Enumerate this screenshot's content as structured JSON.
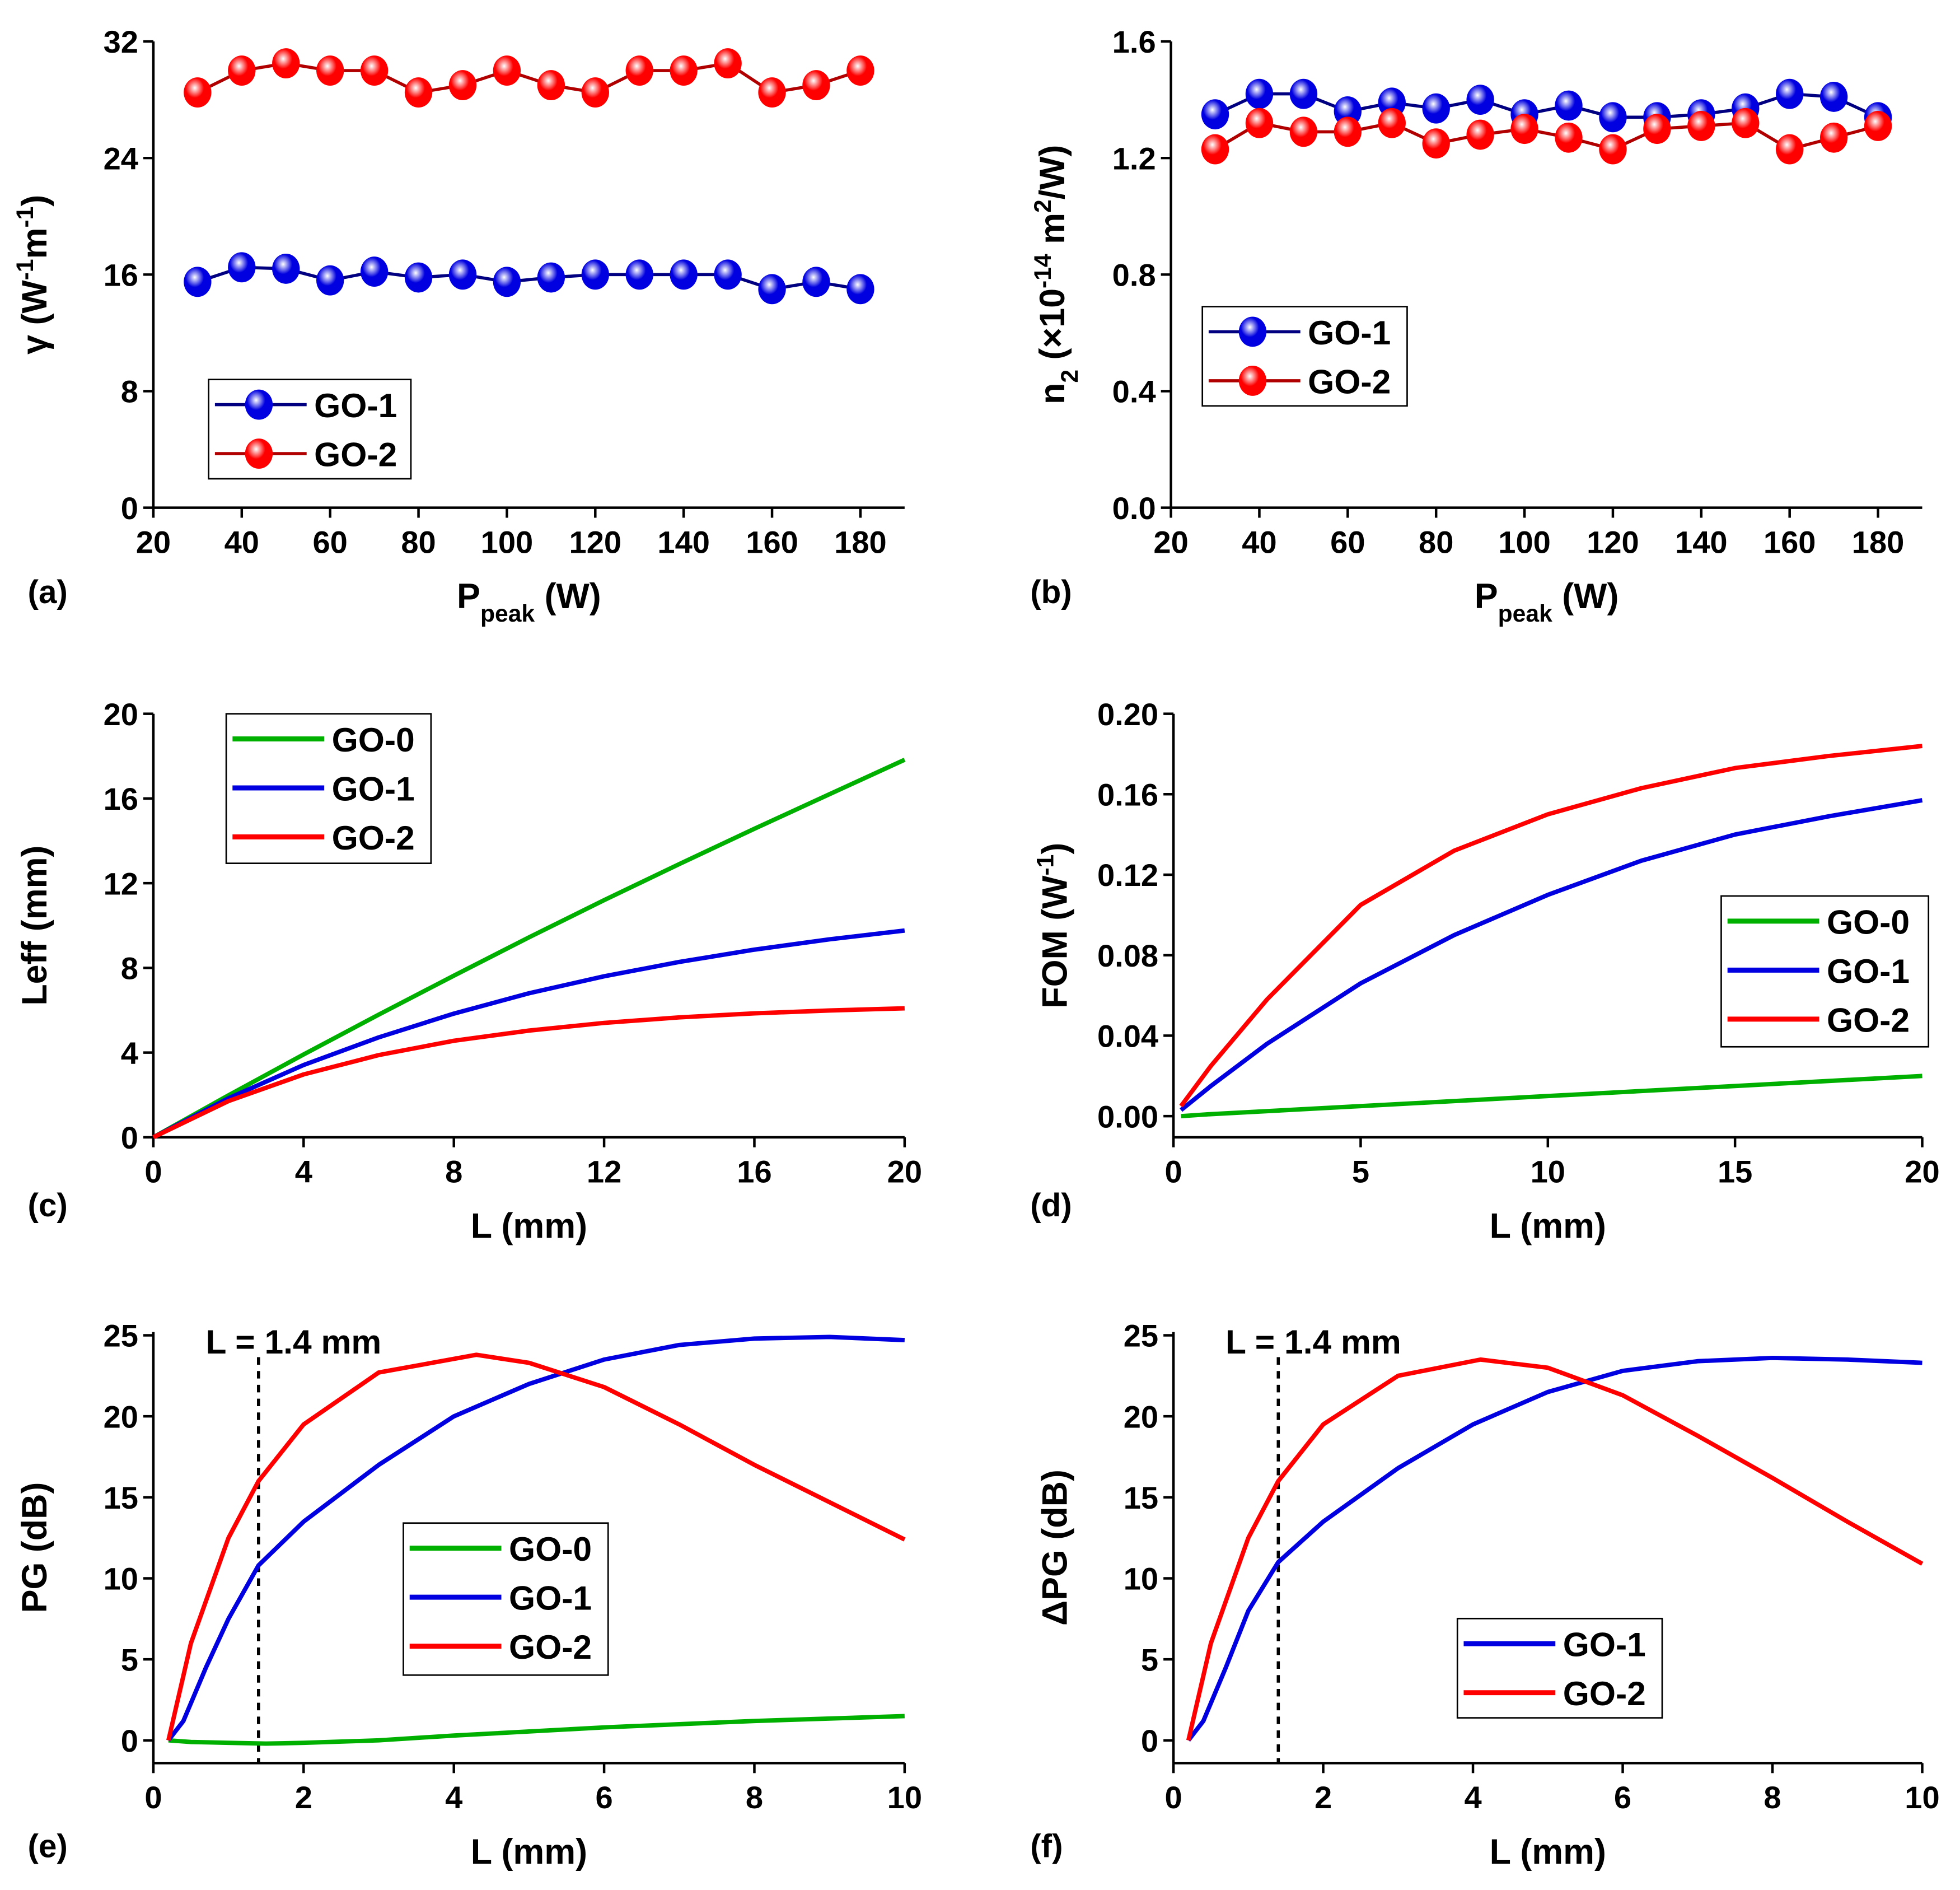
{
  "colors": {
    "GO-0": "#00b000",
    "GO-1": "#0000e0",
    "GO-2": "#ff0000"
  },
  "chart_data": [
    {
      "id": "a",
      "panel_label": "(a)",
      "type": "line",
      "markers": "sphere",
      "xlabel": [
        {
          "t": "P"
        },
        {
          "t": "peak",
          "sub": true
        },
        {
          "t": " (W)"
        }
      ],
      "ylabel": [
        {
          "t": "γ (W"
        },
        {
          "t": "-1",
          "sup": true
        },
        {
          "t": "m"
        },
        {
          "t": "-1",
          "sup": true
        },
        {
          "t": ")"
        }
      ],
      "xlim": [
        20,
        190
      ],
      "ylim": [
        0,
        32
      ],
      "xticks": [
        "20",
        "40",
        "60",
        "80",
        "100",
        "120",
        "140",
        "160",
        "180"
      ],
      "yticks": [
        "0",
        "8",
        "16",
        "24",
        "32"
      ],
      "legend_position": "lower-left",
      "x": [
        30,
        40,
        50,
        60,
        70,
        80,
        90,
        100,
        110,
        120,
        130,
        140,
        150,
        160,
        170,
        180
      ],
      "series": [
        {
          "name": "GO-1",
          "values": [
            15.5,
            16.5,
            16.4,
            15.6,
            16.2,
            15.8,
            16.0,
            15.5,
            15.8,
            16.0,
            16.0,
            16.0,
            16.0,
            15.0,
            15.5,
            15.0
          ]
        },
        {
          "name": "GO-2",
          "values": [
            28.5,
            30.0,
            30.5,
            30.0,
            30.0,
            28.5,
            29.0,
            30.0,
            29.0,
            28.5,
            30.0,
            30.0,
            30.5,
            28.5,
            29.0,
            30.0
          ]
        }
      ]
    },
    {
      "id": "b",
      "panel_label": "(b)",
      "type": "line",
      "markers": "sphere",
      "xlabel": [
        {
          "t": "P"
        },
        {
          "t": "peak",
          "sub": true
        },
        {
          "t": " (W)"
        }
      ],
      "ylabel": [
        {
          "t": "n"
        },
        {
          "t": "2",
          "sub": true
        },
        {
          "t": " (×10"
        },
        {
          "t": "-14",
          "sup": true
        },
        {
          "t": " m"
        },
        {
          "t": "2",
          "sup": true
        },
        {
          "t": "/W)"
        }
      ],
      "xlim": [
        20,
        190
      ],
      "ylim": [
        0,
        1.6
      ],
      "xticks": [
        "20",
        "40",
        "60",
        "80",
        "100",
        "120",
        "140",
        "160",
        "180"
      ],
      "yticks": [
        "0.0",
        "0.4",
        "0.8",
        "1.2",
        "1.6"
      ],
      "legend_position": "middle-left",
      "x": [
        30,
        40,
        50,
        60,
        70,
        80,
        90,
        100,
        110,
        120,
        130,
        140,
        150,
        160,
        170,
        180
      ],
      "series": [
        {
          "name": "GO-1",
          "values": [
            1.35,
            1.42,
            1.42,
            1.36,
            1.39,
            1.37,
            1.4,
            1.35,
            1.38,
            1.34,
            1.34,
            1.35,
            1.37,
            1.42,
            1.41,
            1.34
          ]
        },
        {
          "name": "GO-2",
          "values": [
            1.23,
            1.32,
            1.29,
            1.29,
            1.32,
            1.25,
            1.28,
            1.3,
            1.27,
            1.23,
            1.3,
            1.31,
            1.32,
            1.23,
            1.27,
            1.31
          ]
        }
      ]
    },
    {
      "id": "c",
      "panel_label": "(c)",
      "type": "line",
      "xlabel": [
        {
          "t": "L (mm)"
        }
      ],
      "ylabel": [
        {
          "t": "Leff (mm)"
        }
      ],
      "xlim": [
        0,
        20
      ],
      "ylim": [
        0,
        20
      ],
      "xticks": [
        "0",
        "4",
        "8",
        "12",
        "16",
        "20"
      ],
      "yticks": [
        "0",
        "4",
        "8",
        "12",
        "16",
        "20"
      ],
      "legend_position": "top-left",
      "x": [
        0,
        2,
        4,
        6,
        8,
        10,
        12,
        14,
        16,
        18,
        20
      ],
      "series": [
        {
          "name": "GO-0",
          "values": [
            0,
            1.98,
            3.91,
            5.79,
            7.63,
            9.44,
            11.2,
            12.9,
            14.57,
            16.2,
            17.83
          ]
        },
        {
          "name": "GO-1",
          "values": [
            0,
            1.84,
            3.41,
            4.72,
            5.84,
            6.8,
            7.6,
            8.28,
            8.86,
            9.35,
            9.76
          ]
        },
        {
          "name": "GO-2",
          "values": [
            0,
            1.71,
            2.97,
            3.88,
            4.56,
            5.04,
            5.4,
            5.66,
            5.85,
            5.99,
            6.09
          ]
        }
      ]
    },
    {
      "id": "d",
      "panel_label": "(d)",
      "type": "line",
      "xlabel": [
        {
          "t": "L (mm)"
        }
      ],
      "ylabel": [
        {
          "t": "FOM (W"
        },
        {
          "t": "-1",
          "sup": true
        },
        {
          "t": ")"
        }
      ],
      "xlim": [
        0,
        20
      ],
      "ylim": [
        -0.0105,
        0.2
      ],
      "xticks": [
        "0",
        "5",
        "10",
        "15",
        "20"
      ],
      "yticks": [
        "0.00",
        "0.04",
        "0.08",
        "0.12",
        "0.16",
        "0.20"
      ],
      "legend_position": "middle-right",
      "x": [
        0.2,
        1,
        2.5,
        5,
        7.5,
        10,
        12.5,
        15,
        17.5,
        20
      ],
      "series": [
        {
          "name": "GO-0",
          "values": [
            0,
            0.001,
            0.0025,
            0.005,
            0.0075,
            0.01,
            0.0125,
            0.015,
            0.0175,
            0.02
          ]
        },
        {
          "name": "GO-1",
          "values": [
            0.003,
            0.015,
            0.036,
            0.066,
            0.09,
            0.11,
            0.127,
            0.14,
            0.149,
            0.157
          ]
        },
        {
          "name": "GO-2",
          "values": [
            0.005,
            0.025,
            0.058,
            0.105,
            0.132,
            0.15,
            0.163,
            0.173,
            0.179,
            0.184
          ]
        }
      ]
    },
    {
      "id": "e",
      "panel_label": "(e)",
      "type": "line",
      "xlabel": [
        {
          "t": "L (mm)"
        }
      ],
      "ylabel": [
        {
          "t": "PG (dB)"
        }
      ],
      "xlim": [
        0,
        10
      ],
      "ylim": [
        -1.4,
        25.2
      ],
      "xticks": [
        "0",
        "2",
        "4",
        "6",
        "8",
        "10"
      ],
      "yticks": [
        "0",
        "5",
        "10",
        "15",
        "20",
        "25"
      ],
      "legend_position": "center",
      "annotation": {
        "text": "L = 1.4 mm",
        "x": 1.4
      },
      "series": [
        {
          "name": "GO-0",
          "x": [
            0.2,
            0.5,
            1,
            1.5,
            2,
            3,
            4,
            6,
            8,
            10
          ],
          "values": [
            0,
            -0.1,
            -0.15,
            -0.2,
            -0.15,
            0,
            0.3,
            0.8,
            1.2,
            1.5
          ]
        },
        {
          "name": "GO-1",
          "x": [
            0.2,
            0.4,
            0.7,
            1,
            1.4,
            2,
            3,
            4,
            5,
            6,
            7,
            8,
            9,
            10
          ],
          "values": [
            0,
            1.2,
            4.5,
            7.5,
            10.8,
            13.5,
            17,
            20,
            22,
            23.5,
            24.4,
            24.8,
            24.9,
            24.7
          ]
        },
        {
          "name": "GO-2",
          "x": [
            0.2,
            0.5,
            1,
            1.4,
            2,
            3,
            4.3,
            5,
            6,
            7,
            8,
            9,
            10
          ],
          "values": [
            0,
            6,
            12.5,
            16,
            19.5,
            22.7,
            23.8,
            23.3,
            21.8,
            19.5,
            17,
            14.7,
            12.4
          ]
        }
      ]
    },
    {
      "id": "f",
      "panel_label": "(f)",
      "type": "line",
      "xlabel": [
        {
          "t": "L (mm)"
        }
      ],
      "ylabel": [
        {
          "t": "ΔPG (dB)"
        }
      ],
      "xlim": [
        0,
        10
      ],
      "ylim": [
        -1.4,
        25.2
      ],
      "xticks": [
        "0",
        "2",
        "4",
        "6",
        "8",
        "10"
      ],
      "yticks": [
        "0",
        "5",
        "10",
        "15",
        "20",
        "25"
      ],
      "legend_position": "lower-center",
      "annotation": {
        "text": "L = 1.4 mm",
        "x": 1.4
      },
      "series": [
        {
          "name": "GO-1",
          "x": [
            0.2,
            0.4,
            0.7,
            1,
            1.4,
            2,
            3,
            4,
            5,
            6,
            7,
            8,
            9,
            10
          ],
          "values": [
            0,
            1.2,
            4.5,
            8,
            11,
            13.5,
            16.8,
            19.5,
            21.5,
            22.8,
            23.4,
            23.6,
            23.5,
            23.3
          ]
        },
        {
          "name": "GO-2",
          "x": [
            0.2,
            0.5,
            1,
            1.4,
            2,
            3,
            4.1,
            5,
            6,
            7,
            8,
            9,
            10
          ],
          "values": [
            0,
            6,
            12.5,
            16,
            19.5,
            22.5,
            23.5,
            23,
            21.3,
            18.8,
            16.2,
            13.5,
            10.9
          ]
        }
      ]
    }
  ]
}
